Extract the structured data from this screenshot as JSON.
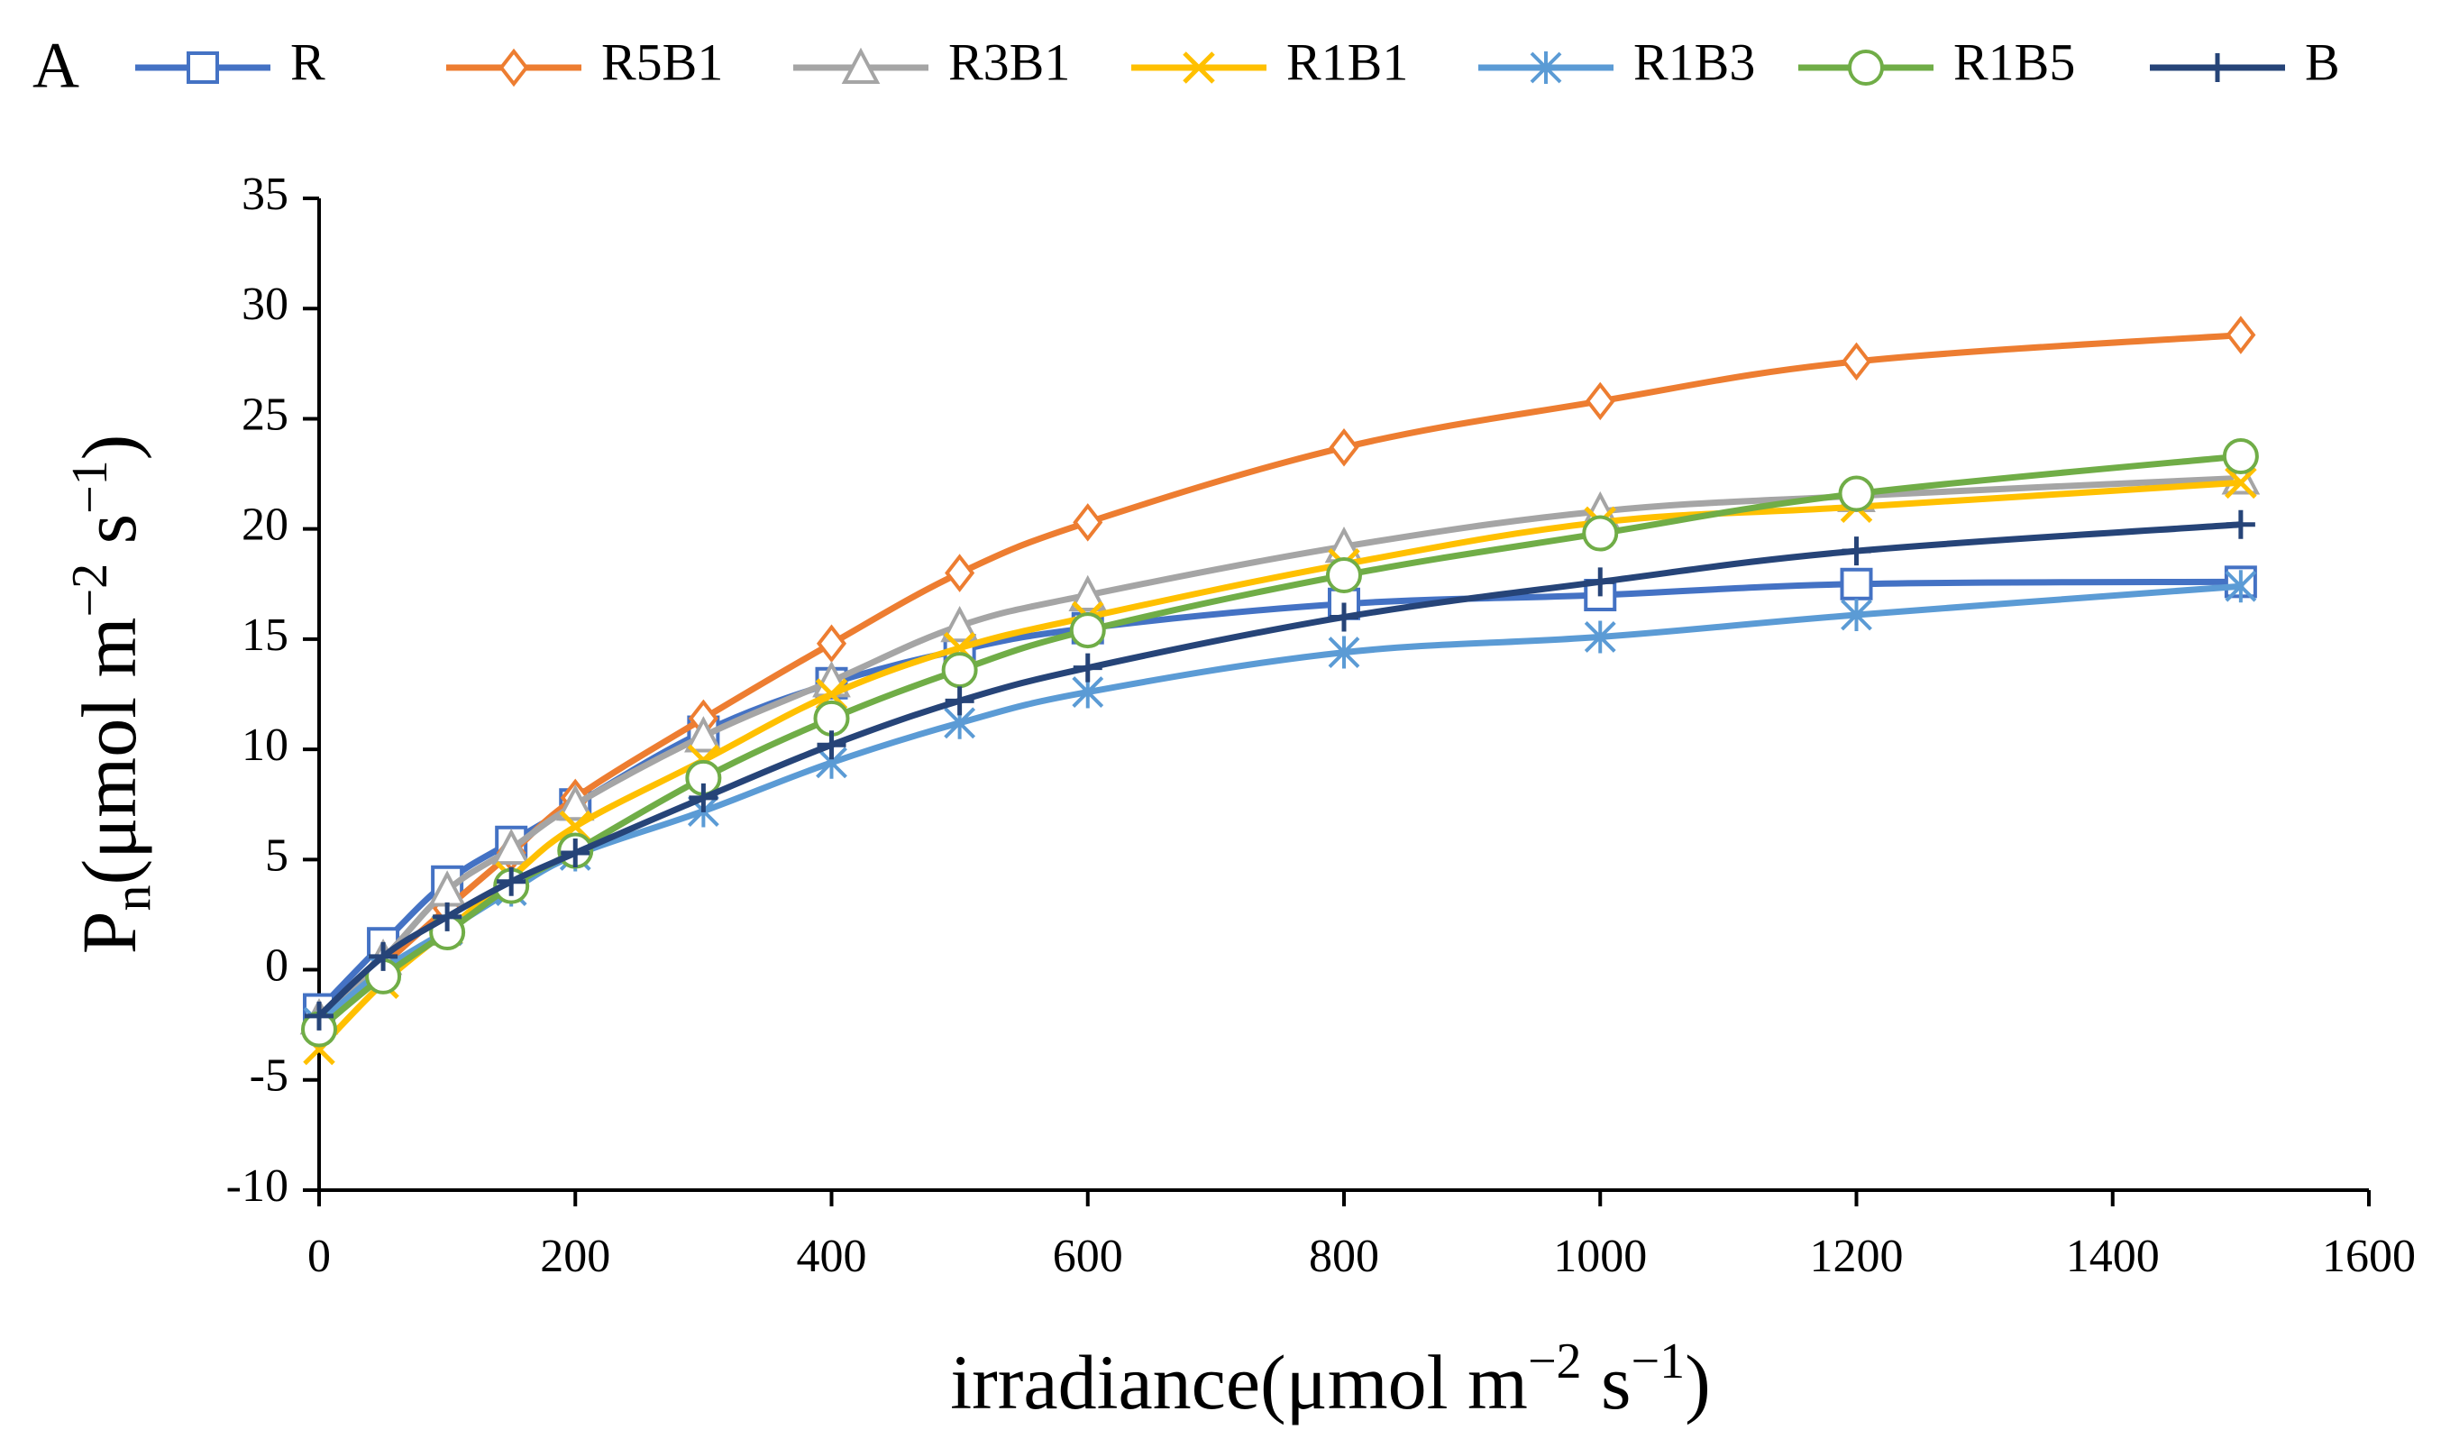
{
  "chart_data": {
    "type": "line",
    "panel_label": "A",
    "title": "",
    "xlabel": {
      "text": "irradiance(μmol  m",
      "sup1": "−2",
      "mid": " s",
      "sup2": "−1",
      "end": ")"
    },
    "ylabel": {
      "main": "P",
      "sub": "n",
      "text": "(μmol m",
      "sup1": "−2",
      "mid": " s",
      "sup2": "−1",
      "end": ")"
    },
    "xlim": [
      0,
      1600
    ],
    "ylim": [
      -10,
      35
    ],
    "x_ticks": [
      "0",
      "200",
      "400",
      "600",
      "800",
      "1000",
      "1200",
      "1400",
      "1600"
    ],
    "y_ticks": [
      "35",
      "30",
      "25",
      "20",
      "15",
      "10",
      "5",
      "0",
      "-5",
      "-10"
    ],
    "legend_position": "top",
    "x": [
      0,
      50,
      100,
      150,
      200,
      300,
      400,
      500,
      600,
      800,
      1000,
      1200,
      1500
    ],
    "series": [
      {
        "name": "R",
        "color": "#4472c4",
        "marker": "square",
        "values": [
          -1.8,
          1.2,
          4.0,
          5.8,
          7.5,
          10.8,
          13.0,
          14.5,
          15.5,
          16.6,
          17.0,
          17.5,
          17.6
        ]
      },
      {
        "name": "R5B1",
        "color": "#ed7d31",
        "marker": "diamond",
        "values": [
          -2.5,
          0.2,
          2.8,
          5.3,
          7.8,
          11.4,
          14.8,
          18.0,
          20.3,
          23.7,
          25.8,
          27.6,
          28.8
        ]
      },
      {
        "name": "R3B1",
        "color": "#a5a5a5",
        "marker": "triangle",
        "values": [
          -2.2,
          0.5,
          3.6,
          5.5,
          7.5,
          10.6,
          13.1,
          15.6,
          17.0,
          19.2,
          20.8,
          21.5,
          22.3
        ]
      },
      {
        "name": "R1B1",
        "color": "#ffc000",
        "marker": "x",
        "values": [
          -3.6,
          -0.6,
          1.8,
          4.2,
          6.5,
          9.5,
          12.5,
          14.6,
          16.0,
          18.4,
          20.3,
          21.0,
          22.1
        ]
      },
      {
        "name": "R1B3",
        "color": "#5b9bd5",
        "marker": "asterisk",
        "values": [
          -2.4,
          0.0,
          1.8,
          3.6,
          5.2,
          7.2,
          9.4,
          11.2,
          12.6,
          14.4,
          15.1,
          16.1,
          17.4
        ]
      },
      {
        "name": "R1B5",
        "color": "#70ad47",
        "marker": "circle",
        "values": [
          -2.7,
          -0.3,
          1.7,
          3.8,
          5.4,
          8.7,
          11.4,
          13.6,
          15.4,
          17.9,
          19.8,
          21.6,
          23.3
        ]
      },
      {
        "name": "B",
        "color": "#264478",
        "marker": "plus",
        "values": [
          -2.1,
          0.6,
          2.4,
          4.0,
          5.3,
          7.8,
          10.2,
          12.2,
          13.7,
          16.0,
          17.6,
          19.0,
          20.2
        ]
      }
    ]
  }
}
